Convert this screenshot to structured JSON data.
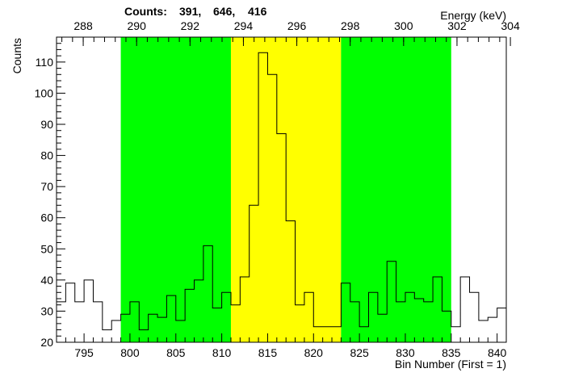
{
  "chart_data": {
    "type": "histogram",
    "title": "",
    "counts_label": "Counts:",
    "counts_values": [
      "391,",
      "646,",
      "416"
    ],
    "ylabel": "Counts",
    "xlabel": "Bin Number (First = 1)",
    "x2label": "Energy (keV)",
    "xlim": [
      792,
      841
    ],
    "ylim": [
      20,
      118
    ],
    "x_ticks": [
      795,
      800,
      805,
      810,
      815,
      820,
      825,
      830,
      835,
      840
    ],
    "y_ticks": [
      20,
      30,
      40,
      50,
      60,
      70,
      80,
      90,
      100,
      110
    ],
    "energy_ticks": [
      288,
      290,
      292,
      294,
      296,
      298,
      300,
      302,
      304
    ],
    "energy_scale": {
      "bin_ref": 792,
      "energy_at_ref": 287.0,
      "kev_per_bin": 0.3438
    },
    "bin_width": 1,
    "bins_start": 792,
    "values": [
      33,
      39,
      33,
      40,
      33,
      24,
      27,
      29,
      33,
      24,
      29,
      28,
      35,
      27,
      37,
      40,
      51,
      31,
      36,
      32,
      41,
      64,
      113,
      106,
      87,
      59,
      32,
      36,
      25,
      25,
      25,
      39,
      33,
      25,
      36,
      29,
      46,
      33,
      36,
      34,
      33,
      41,
      30,
      25,
      41,
      36,
      27,
      28,
      31
    ],
    "regions": [
      {
        "from": 799,
        "to": 811,
        "color": "#00ff00"
      },
      {
        "from": 811,
        "to": 823,
        "color": "#ffff00"
      },
      {
        "from": 823,
        "to": 835,
        "color": "#00ff00"
      }
    ],
    "line_color": "#000000",
    "grid": false
  }
}
